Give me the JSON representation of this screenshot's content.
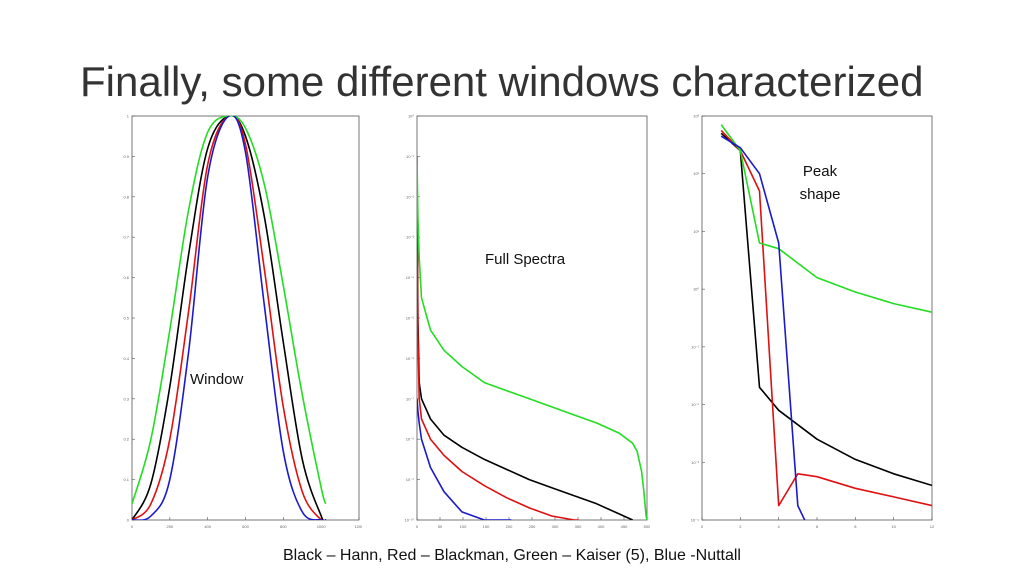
{
  "slide": {
    "title": "Finally, some different windows characterized",
    "caption": "Black – Hann, Red – Blackman, Green – Kaiser (5), Blue -Nuttall"
  },
  "colors": {
    "hann": "#000000",
    "blackman": "#e01010",
    "kaiser": "#22dd22",
    "nuttall": "#1a1acc",
    "axis": "#555555"
  },
  "chart_data": [
    {
      "type": "line",
      "annotation": "Window",
      "xlim": [
        0,
        1200
      ],
      "ylim": [
        0,
        1
      ],
      "xticks": [
        "0",
        "200",
        "400",
        "600",
        "800",
        "1000",
        "1200"
      ],
      "yticks": [
        "0",
        "0.1",
        "0.2",
        "0.3",
        "0.4",
        "0.5",
        "0.6",
        "0.7",
        "0.8",
        "0.9",
        "1"
      ],
      "series": [
        {
          "name": "Hann",
          "color": "#000000",
          "x": [
            0,
            100,
            200,
            300,
            400,
            512,
            600,
            700,
            800,
            900,
            1000,
            1024
          ],
          "y": [
            0,
            0.09,
            0.33,
            0.66,
            0.92,
            1,
            0.95,
            0.75,
            0.44,
            0.15,
            0.01,
            0
          ]
        },
        {
          "name": "Blackman",
          "color": "#e01010",
          "x": [
            0,
            100,
            200,
            300,
            400,
            512,
            600,
            700,
            800,
            900,
            1000,
            1024
          ],
          "y": [
            0,
            0.04,
            0.2,
            0.52,
            0.88,
            1,
            0.93,
            0.62,
            0.28,
            0.07,
            0.0,
            0
          ]
        },
        {
          "name": "Kaiser (5)",
          "color": "#22dd22",
          "x": [
            0,
            100,
            200,
            300,
            400,
            512,
            600,
            700,
            800,
            900,
            1000,
            1024
          ],
          "y": [
            0.04,
            0.2,
            0.47,
            0.77,
            0.96,
            1,
            0.97,
            0.83,
            0.58,
            0.31,
            0.08,
            0.04
          ]
        },
        {
          "name": "Nuttall",
          "color": "#1a1acc",
          "x": [
            0,
            100,
            200,
            300,
            400,
            512,
            600,
            700,
            800,
            900,
            1000,
            1024
          ],
          "y": [
            0,
            0.01,
            0.1,
            0.42,
            0.85,
            1,
            0.91,
            0.53,
            0.17,
            0.02,
            0,
            0
          ]
        }
      ]
    },
    {
      "type": "line",
      "annotation": "Full Spectra",
      "yscale": "log",
      "xlim": [
        0,
        512
      ],
      "ylim": [
        -10,
        0
      ],
      "xticks": [
        "0",
        "50",
        "100",
        "150",
        "200",
        "250",
        "300",
        "350",
        "400",
        "450",
        "500"
      ],
      "yticks": [
        "10⁻¹⁰",
        "10⁻⁹",
        "10⁻⁸",
        "10⁻⁷",
        "10⁻⁶",
        "10⁻⁵",
        "10⁻⁴",
        "10⁻³",
        "10⁻²",
        "10⁻¹",
        "10⁰"
      ],
      "series": [
        {
          "name": "Hann",
          "color": "#000000",
          "x": [
            0,
            2,
            5,
            10,
            30,
            60,
            100,
            150,
            200,
            250,
            300,
            350,
            400,
            450,
            480
          ],
          "logy": [
            -1,
            -5,
            -6.6,
            -7,
            -7.5,
            -7.9,
            -8.2,
            -8.5,
            -8.75,
            -9,
            -9.2,
            -9.4,
            -9.6,
            -9.85,
            -10
          ]
        },
        {
          "name": "Blackman",
          "color": "#e01010",
          "x": [
            0,
            2,
            5,
            10,
            30,
            60,
            100,
            150,
            200,
            250,
            300,
            350,
            360
          ],
          "logy": [
            -1,
            -5.5,
            -7,
            -7.5,
            -8,
            -8.4,
            -8.8,
            -9.15,
            -9.45,
            -9.7,
            -9.9,
            -10,
            -10
          ]
        },
        {
          "name": "Kaiser (5)",
          "color": "#22dd22",
          "x": [
            0,
            2,
            5,
            10,
            30,
            60,
            100,
            150,
            200,
            250,
            300,
            350,
            400,
            450,
            480,
            490,
            500,
            505,
            510,
            512
          ],
          "logy": [
            -1,
            -2.5,
            -3.5,
            -4.5,
            -5.3,
            -5.8,
            -6.2,
            -6.6,
            -6.8,
            -7,
            -7.2,
            -7.4,
            -7.6,
            -7.85,
            -8.1,
            -8.3,
            -8.8,
            -9.3,
            -9.9,
            -10
          ]
        },
        {
          "name": "Nuttall",
          "color": "#1a1acc",
          "x": [
            0,
            2,
            5,
            10,
            30,
            60,
            100,
            150,
            200,
            210
          ],
          "logy": [
            -7,
            -7.3,
            -7.6,
            -8,
            -8.7,
            -9.3,
            -9.8,
            -10,
            -10,
            -10
          ]
        }
      ]
    },
    {
      "type": "line",
      "annotation": "Peak shape",
      "yscale": "log",
      "xlim": [
        0,
        12
      ],
      "ylim": [
        -4,
        3
      ],
      "xticks": [
        "0",
        "2",
        "4",
        "6",
        "8",
        "10",
        "12"
      ],
      "yticks": [
        "10⁻⁴",
        "10⁻³",
        "10⁻²",
        "10⁻¹",
        "10⁰",
        "10¹",
        "10²",
        "10³"
      ],
      "series": [
        {
          "name": "Hann",
          "color": "#000000",
          "x": [
            1,
            2,
            3,
            4,
            6,
            8,
            10,
            12
          ],
          "logy": [
            2.7,
            2.4,
            -1.7,
            -2.1,
            -2.6,
            -2.95,
            -3.2,
            -3.4
          ]
        },
        {
          "name": "Blackman",
          "color": "#e01010",
          "x": [
            1,
            2,
            3,
            4,
            5,
            6,
            8,
            10,
            12
          ],
          "logy": [
            2.75,
            2.4,
            1.7,
            -3.75,
            -3.2,
            -3.25,
            -3.45,
            -3.6,
            -3.75
          ]
        },
        {
          "name": "Kaiser (5)",
          "color": "#22dd22",
          "x": [
            1,
            2,
            3,
            4,
            6,
            8,
            10,
            12
          ],
          "logy": [
            2.85,
            2.4,
            0.8,
            0.7,
            0.2,
            -0.05,
            -0.25,
            -0.4
          ]
        },
        {
          "name": "Nuttall",
          "color": "#1a1acc",
          "x": [
            1,
            2,
            3,
            4,
            5,
            6,
            7,
            8,
            10,
            12
          ],
          "logy": [
            2.65,
            2.45,
            2.0,
            0.8,
            -3.75,
            -4.45,
            -4.35,
            -4.35,
            -4.45,
            -4.55
          ]
        }
      ]
    }
  ]
}
